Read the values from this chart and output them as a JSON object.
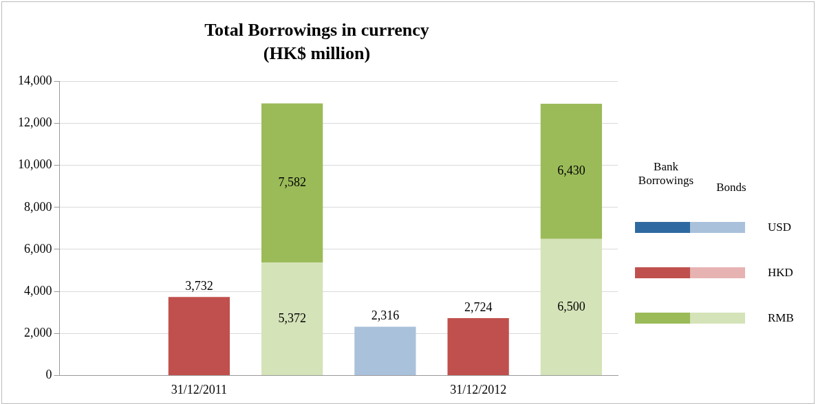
{
  "chart_data": {
    "type": "bar",
    "title": "Total Borrowings in currency",
    "subtitle": "(HK$ million)",
    "categories": [
      null,
      "31/12/2011",
      null,
      null,
      "31/12/2012",
      null
    ],
    "stacked": true,
    "series": [
      {
        "name": "Bonds",
        "colors": [
          "#a9c1db",
          "#e6b3b2",
          "#d4e3b8",
          "#a9c1db",
          "#e6b3b2",
          "#d4e3b8"
        ],
        "values": [
          null,
          null,
          5372,
          2316,
          null,
          6500
        ],
        "value_labels": [
          null,
          null,
          "5,372",
          "2,316",
          null,
          "6,500"
        ]
      },
      {
        "name": "Bank Borrowings",
        "colors": [
          "#2e6aa1",
          "#c0504d",
          "#9bbb59",
          "#2e6aa1",
          "#c0504d",
          "#9bbb59"
        ],
        "values": [
          null,
          3732,
          7582,
          null,
          2724,
          6430
        ],
        "value_labels": [
          null,
          "3,732",
          "7,582",
          null,
          "2,724",
          "6,430"
        ]
      }
    ],
    "ylim": [
      0,
      14000
    ],
    "yticks": [
      {
        "value": 0,
        "label": "0"
      },
      {
        "value": 2000,
        "label": "2,000"
      },
      {
        "value": 4000,
        "label": "4,000"
      },
      {
        "value": 6000,
        "label": "6,000"
      },
      {
        "value": 8000,
        "label": "8,000"
      },
      {
        "value": 10000,
        "label": "10,000"
      },
      {
        "value": 12000,
        "label": "12,000"
      },
      {
        "value": 14000,
        "label": "14,000"
      }
    ],
    "grid": "y",
    "legend": "right",
    "annotations": [
      "USD",
      "HKD",
      "RMB"
    ]
  }
}
